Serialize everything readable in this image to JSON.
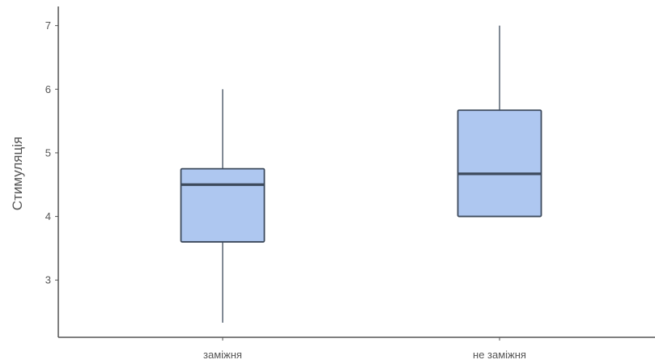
{
  "chart_data": {
    "type": "boxplot",
    "title": "",
    "xlabel": "",
    "ylabel": "Стимуляція",
    "ylim": [
      2.1,
      7.25
    ],
    "yticks": [
      3,
      4,
      5,
      6,
      7
    ],
    "grid": false,
    "categories": [
      "заміжня",
      "не заміжня"
    ],
    "boxes": [
      {
        "category": "заміжня",
        "whisker_low": 2.33,
        "q1": 3.6,
        "median": 4.5,
        "q3": 4.75,
        "whisker_high": 6.0
      },
      {
        "category": "не заміжня",
        "whisker_low": 4.0,
        "q1": 4.0,
        "median": 4.67,
        "q3": 5.67,
        "whisker_high": 7.0
      }
    ],
    "colors": {
      "box_fill": "#aec7f0",
      "box_stroke": "#3d4a5c",
      "axis": "#555555",
      "text": "#555555"
    }
  }
}
